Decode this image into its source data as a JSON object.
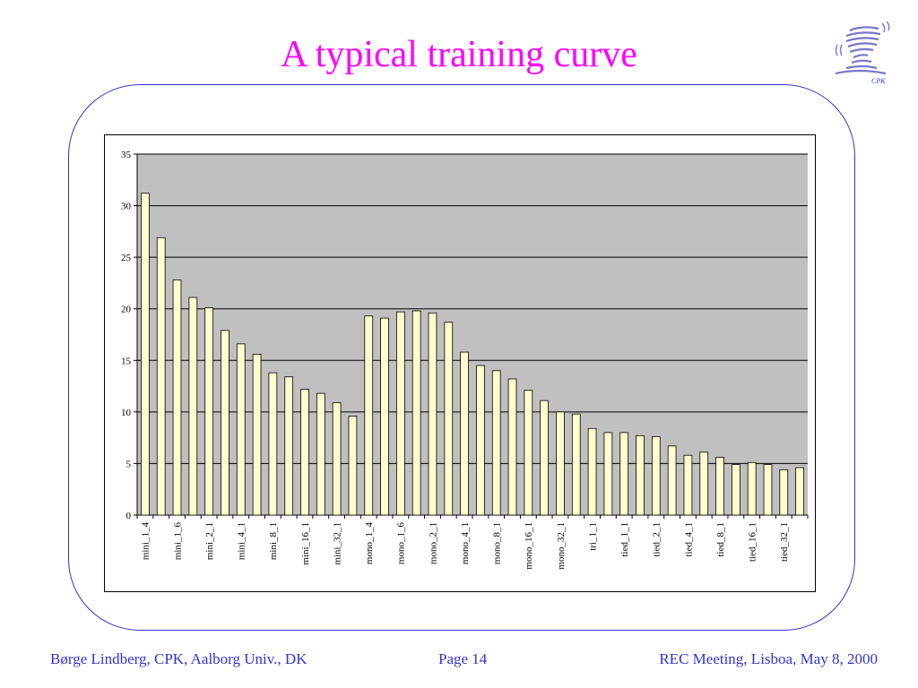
{
  "slide": {
    "title": "A typical training curve",
    "logo_text": "CPK",
    "footer_left": "Børge Lindberg, CPK, Aalborg Univ., DK",
    "footer_center": "Page 14",
    "footer_right": "REC Meeting, Lisboa, May 8, 2000"
  },
  "colors": {
    "title": "#ff00ff",
    "frame": "#3333cc",
    "footer": "#3333cc",
    "plot_bg": "#c0c0c0",
    "bar_fill": "#ffffcc"
  },
  "chart_data": {
    "type": "bar",
    "title": "",
    "xlabel": "",
    "ylabel": "",
    "ylim": [
      0,
      35
    ],
    "yticks": [
      0,
      5,
      10,
      15,
      20,
      25,
      30,
      35
    ],
    "grid": true,
    "legend": "none",
    "category_labels": [
      "mini_1_4",
      "mini_1_6",
      "mini_2_1",
      "mini_4_1",
      "mini_8_1",
      "mini_16_1",
      "mini_32_1",
      "mono_1_4",
      "mono_1_6",
      "mono_2_1",
      "mono_4_1",
      "mono_8_1",
      "mono_16_1",
      "mono_32_1",
      "tri_1_1",
      "tied_1_1",
      "tied_2_1",
      "tied_4_1",
      "tied_8_1",
      "tied_16_1",
      "tied_32_1"
    ],
    "values": [
      31.2,
      26.9,
      22.8,
      21.1,
      20.1,
      17.9,
      16.6,
      15.6,
      13.8,
      13.4,
      12.2,
      11.8,
      10.9,
      9.6,
      19.3,
      19.1,
      19.7,
      19.8,
      19.6,
      18.7,
      15.8,
      14.5,
      14.0,
      13.2,
      12.1,
      11.1,
      10.0,
      9.8,
      8.4,
      8.0,
      8.0,
      7.7,
      7.6,
      6.7,
      5.8,
      6.1,
      5.6,
      4.9,
      5.1,
      4.9,
      4.4,
      4.6
    ]
  }
}
